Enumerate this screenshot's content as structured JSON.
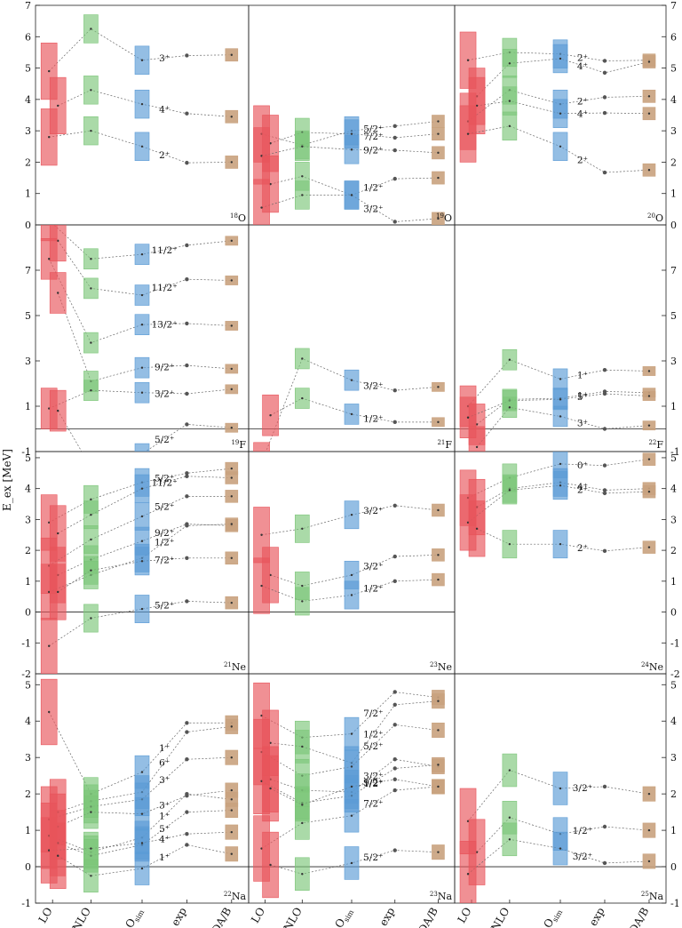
{
  "figure": {
    "ylabel": "E_ex [MeV]",
    "categories": [
      "LO",
      "NLO",
      "NLO_sim",
      "exp",
      "USDA/B"
    ],
    "category_labels": [
      {
        "main": "LO",
        "sub": ""
      },
      {
        "main": "NLO",
        "sub": ""
      },
      {
        "main": "NLO",
        "sub": "sim"
      },
      {
        "main": "exp",
        "sub": ""
      },
      {
        "main": "USDA/B",
        "sub": ""
      }
    ],
    "colors": {
      "LO": "#e8545b",
      "NLO": "#7dc67a",
      "NLO_sim": "#5b9bd5",
      "exp": "#555555",
      "USDA": "#c9a27e"
    },
    "rows": [
      {
        "ylim": [
          0,
          7
        ],
        "ticks": [
          0,
          1,
          2,
          3,
          4,
          5,
          6,
          7
        ]
      },
      {
        "ylim": [
          -1,
          9
        ],
        "ticks": [
          -1,
          1,
          3,
          5,
          7
        ]
      },
      {
        "ylim": [
          -2,
          5.2
        ],
        "ticks": [
          -2,
          -1,
          0,
          1,
          2,
          3,
          4,
          5
        ]
      },
      {
        "ylim": [
          -1,
          5.3
        ],
        "ticks": [
          -1,
          0,
          1,
          2,
          3,
          4,
          5
        ]
      }
    ]
  },
  "chart_data": [
    {
      "type": "scatter",
      "nucleus": {
        "mass": "18",
        "element": "O"
      },
      "row": 0,
      "col": 0,
      "zero_line": false,
      "states": [
        {
          "label": "3⁺",
          "values": [
            4.9,
            6.25,
            5.25,
            5.4,
            5.42
          ]
        },
        {
          "label": "4⁺",
          "values": [
            3.8,
            4.3,
            3.85,
            3.55,
            3.45
          ]
        },
        {
          "label": "2⁺",
          "values": [
            2.8,
            3.0,
            2.5,
            1.98,
            2.0
          ]
        }
      ]
    },
    {
      "type": "scatter",
      "nucleus": {
        "mass": "19",
        "element": "O"
      },
      "row": 0,
      "col": 1,
      "zero_line": false,
      "states": [
        {
          "label": "5/2⁺",
          "values": [
            2.9,
            2.55,
            3.0,
            3.15,
            3.3
          ]
        },
        {
          "label": "7/2⁺",
          "values": [
            2.6,
            2.95,
            2.9,
            2.78,
            2.9
          ]
        },
        {
          "label": "9/2⁺",
          "values": [
            2.2,
            2.5,
            2.4,
            2.38,
            2.3
          ]
        },
        {
          "label": "1/2⁺",
          "values": [
            1.3,
            1.55,
            0.95,
            1.47,
            1.5
          ]
        },
        {
          "label": "3/2⁺",
          "values": [
            0.55,
            0.95,
            0.95,
            0.1,
            0.2
          ]
        }
      ]
    },
    {
      "type": "scatter",
      "nucleus": {
        "mass": "20",
        "element": "O"
      },
      "row": 0,
      "col": 2,
      "zero_line": false,
      "states": [
        {
          "label": "2⁺",
          "values": [
            5.25,
            5.5,
            5.45,
            5.23,
            5.25
          ]
        },
        {
          "label": "4⁺",
          "values": [
            4.1,
            5.15,
            5.3,
            4.85,
            5.2
          ]
        },
        {
          "label": "2⁺",
          "values": [
            3.3,
            4.3,
            3.85,
            4.07,
            4.1
          ]
        },
        {
          "label": "4⁺",
          "values": [
            3.8,
            3.95,
            3.55,
            3.57,
            3.55
          ]
        },
        {
          "label": "2⁺",
          "values": [
            2.9,
            3.15,
            2.5,
            1.67,
            1.75
          ]
        }
      ]
    },
    {
      "type": "scatter",
      "nucleus": {
        "mass": "19",
        "element": "F"
      },
      "row": 1,
      "col": 0,
      "zero_line": true,
      "states": [
        {
          "label": "11/2⁺",
          "values": [
            9.2,
            7.5,
            7.7,
            8.1,
            8.3
          ]
        },
        {
          "label": "11/2⁺",
          "values": [
            8.3,
            6.2,
            5.9,
            6.6,
            6.55
          ]
        },
        {
          "label": "13/2⁺",
          "values": [
            7.5,
            3.8,
            4.6,
            4.65,
            4.55
          ]
        },
        {
          "label": "9/2⁺",
          "values": [
            6.0,
            2.1,
            2.7,
            2.8,
            2.65
          ]
        },
        {
          "label": "3/2⁺",
          "values": [
            0.9,
            1.7,
            1.6,
            1.55,
            1.75
          ]
        },
        {
          "label": "5/2⁺",
          "values": [
            0.8,
            -1.7,
            -1.1,
            0.2,
            0.05
          ]
        }
      ]
    },
    {
      "type": "scatter",
      "nucleus": {
        "mass": "21",
        "element": "F"
      },
      "row": 1,
      "col": 1,
      "zero_line": true,
      "states": [
        {
          "label": "3/2⁺",
          "values": [
            -1.5,
            3.1,
            2.15,
            1.7,
            1.85
          ]
        },
        {
          "label": "1/2⁺",
          "values": [
            0.6,
            1.35,
            0.65,
            0.3,
            0.3
          ]
        }
      ]
    },
    {
      "type": "scatter",
      "nucleus": {
        "mass": "22",
        "element": "F"
      },
      "row": 1,
      "col": 2,
      "zero_line": true,
      "states": [
        {
          "label": "1⁺",
          "values": [
            1.0,
            3.05,
            2.2,
            2.6,
            2.55
          ]
        },
        {
          "label": "1⁺",
          "values": [
            0.2,
            1.3,
            1.35,
            1.65,
            1.6
          ]
        },
        {
          "label": "5⁺",
          "values": [
            0.5,
            1.25,
            1.3,
            1.55,
            1.45
          ]
        },
        {
          "label": "3⁺",
          "values": [
            -0.8,
            0.95,
            0.55,
            0.0,
            0.15
          ]
        }
      ]
    },
    {
      "type": "scatter",
      "nucleus": {
        "mass": "21",
        "element": "Ne"
      },
      "row": 2,
      "col": 0,
      "zero_line": true,
      "states": [
        {
          "label": "5/2⁺",
          "values": [
            2.9,
            3.65,
            4.2,
            4.5,
            4.65
          ]
        },
        {
          "label": "11/2⁺",
          "values": [
            2.55,
            3.15,
            4.0,
            4.4,
            4.35
          ]
        },
        {
          "label": "5/2⁺",
          "values": [
            1.5,
            2.35,
            3.1,
            3.75,
            3.75
          ]
        },
        {
          "label": "9/2⁺",
          "values": [
            1.2,
            1.7,
            2.3,
            2.85,
            2.8
          ]
        },
        {
          "label": "1/2⁺",
          "values": [
            0.65,
            1.2,
            1.75,
            2.8,
            2.85
          ]
        },
        {
          "label": "7/2⁺",
          "values": [
            0.65,
            1.35,
            1.65,
            1.75,
            1.75
          ]
        },
        {
          "label": "5/2⁺",
          "values": [
            -1.1,
            -0.2,
            0.1,
            0.35,
            0.3
          ]
        }
      ]
    },
    {
      "type": "scatter",
      "nucleus": {
        "mass": "23",
        "element": "Ne"
      },
      "row": 2,
      "col": 1,
      "zero_line": true,
      "states": [
        {
          "label": "3/2⁺",
          "values": [
            2.5,
            2.7,
            3.15,
            3.45,
            3.3
          ]
        },
        {
          "label": "3/2⁺",
          "values": [
            1.2,
            0.85,
            1.2,
            1.8,
            1.85
          ]
        },
        {
          "label": "1/2⁺",
          "values": [
            0.85,
            0.35,
            0.55,
            1.0,
            1.05
          ]
        }
      ]
    },
    {
      "type": "scatter",
      "nucleus": {
        "mass": "24",
        "element": "Ne"
      },
      "row": 2,
      "col": 2,
      "zero_line": false,
      "states": [
        {
          "label": "0⁺",
          "values": [
            3.7,
            4.35,
            4.8,
            4.75,
            4.95
          ]
        },
        {
          "label": "4⁺",
          "values": [
            3.4,
            4.0,
            4.2,
            3.95,
            4.0
          ]
        },
        {
          "label": "2⁺",
          "values": [
            2.9,
            3.95,
            4.1,
            3.85,
            3.9
          ]
        },
        {
          "label": "2⁺",
          "values": [
            2.7,
            2.2,
            2.2,
            1.98,
            2.1
          ]
        }
      ]
    },
    {
      "type": "scatter",
      "nucleus": {
        "mass": "22",
        "element": "Na"
      },
      "row": 3,
      "col": 0,
      "zero_line": true,
      "states": [
        {
          "label": "1⁺",
          "values": [
            4.25,
            2.0,
            2.6,
            3.95,
            3.95
          ]
        },
        {
          "label": "6⁺",
          "values": [
            1.5,
            1.8,
            2.05,
            3.7,
            3.85
          ]
        },
        {
          "label": "3⁺",
          "values": [
            1.3,
            1.65,
            1.85,
            2.95,
            3.0
          ]
        },
        {
          "label": "3⁺",
          "values": [
            1.1,
            1.5,
            1.45,
            1.95,
            2.1
          ]
        },
        {
          "label": "1⁺",
          "values": [
            0.85,
            0.4,
            0.8,
            2.0,
            1.85
          ]
        },
        {
          "label": "5⁺",
          "values": [
            0.65,
            0.3,
            0.6,
            1.5,
            1.55
          ]
        },
        {
          "label": "4⁺",
          "values": [
            0.45,
            0.5,
            0.65,
            0.9,
            0.95
          ]
        },
        {
          "label": "1⁺",
          "values": [
            0.3,
            -0.25,
            -0.05,
            0.6,
            0.35
          ]
        }
      ]
    },
    {
      "type": "scatter",
      "nucleus": {
        "mass": "23",
        "element": "Na"
      },
      "row": 3,
      "col": 1,
      "zero_line": true,
      "states": [
        {
          "label": "7/2⁺",
          "values": [
            4.15,
            3.55,
            3.65,
            4.8,
            4.65
          ]
        },
        {
          "label": "1/2⁺",
          "values": [
            3.4,
            3.3,
            2.85,
            4.45,
            4.55
          ]
        },
        {
          "label": "5/2⁺",
          "values": [
            3.15,
            2.5,
            2.75,
            3.9,
            3.75
          ]
        },
        {
          "label": "3/2⁺",
          "values": [
            2.4,
            2.1,
            2.05,
            2.95,
            2.75
          ]
        },
        {
          "label": "9/2⁺",
          "values": [
            2.35,
            1.75,
            1.95,
            2.7,
            2.8
          ]
        },
        {
          "label": "1/2⁺",
          "values": [
            2.15,
            1.7,
            2.2,
            2.4,
            2.2
          ]
        },
        {
          "label": "7/2⁺",
          "values": [
            0.5,
            1.2,
            1.4,
            2.1,
            2.2
          ]
        },
        {
          "label": "5/2⁺",
          "values": [
            0.05,
            -0.2,
            0.1,
            0.45,
            0.4
          ]
        }
      ]
    },
    {
      "type": "scatter",
      "nucleus": {
        "mass": "25",
        "element": "Na"
      },
      "row": 3,
      "col": 2,
      "zero_line": true,
      "states": [
        {
          "label": "3/2⁺",
          "values": [
            1.25,
            2.65,
            2.15,
            2.2,
            2.0
          ]
        },
        {
          "label": "1/2⁺",
          "values": [
            0.4,
            1.35,
            0.9,
            1.1,
            1.0
          ]
        },
        {
          "label": "3/2⁺",
          "values": [
            -0.2,
            0.75,
            0.5,
            0.1,
            0.15
          ]
        }
      ]
    }
  ]
}
